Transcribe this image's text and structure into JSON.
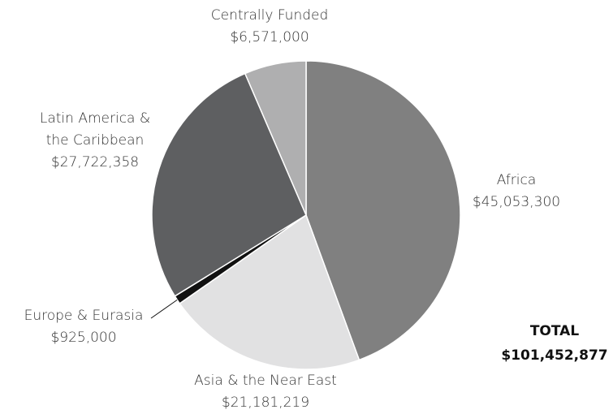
{
  "chart_data": {
    "type": "pie",
    "categories": [
      "Africa",
      "Asia & the Near East",
      "Europe & Eurasia",
      "Latin America &\nthe Caribbean",
      "Centrally Funded"
    ],
    "values": [
      45053300,
      21181219,
      925000,
      27722358,
      6571000
    ],
    "value_labels": [
      "$45,053,300",
      "$21,181,219",
      "$925,000",
      "$27,722,358",
      "$6,571,000"
    ],
    "colors": [
      "#808080",
      "#e1e1e2",
      "#111111",
      "#5e5f61",
      "#afafb0"
    ],
    "annotation": "TOTAL",
    "annotation_value": "$101,452,877"
  }
}
